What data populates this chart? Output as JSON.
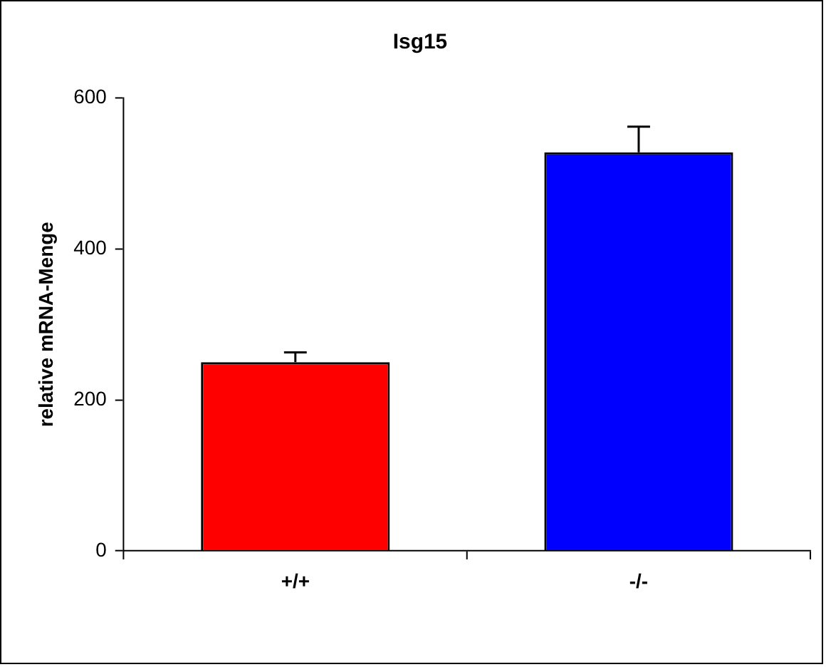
{
  "chart_data": {
    "type": "bar",
    "title": "Isg15",
    "ylabel": "relative mRNA-Menge",
    "categories": [
      "+/+",
      "-/-"
    ],
    "values": [
      250,
      528
    ],
    "colors": [
      "#ff0000",
      "#0000ff"
    ],
    "errors": [
      [
        250,
        263
      ],
      [
        528,
        562
      ]
    ],
    "ylim": [
      0,
      600
    ],
    "yticks": [
      0,
      200,
      400,
      600
    ],
    "grid": false,
    "legend": false
  }
}
